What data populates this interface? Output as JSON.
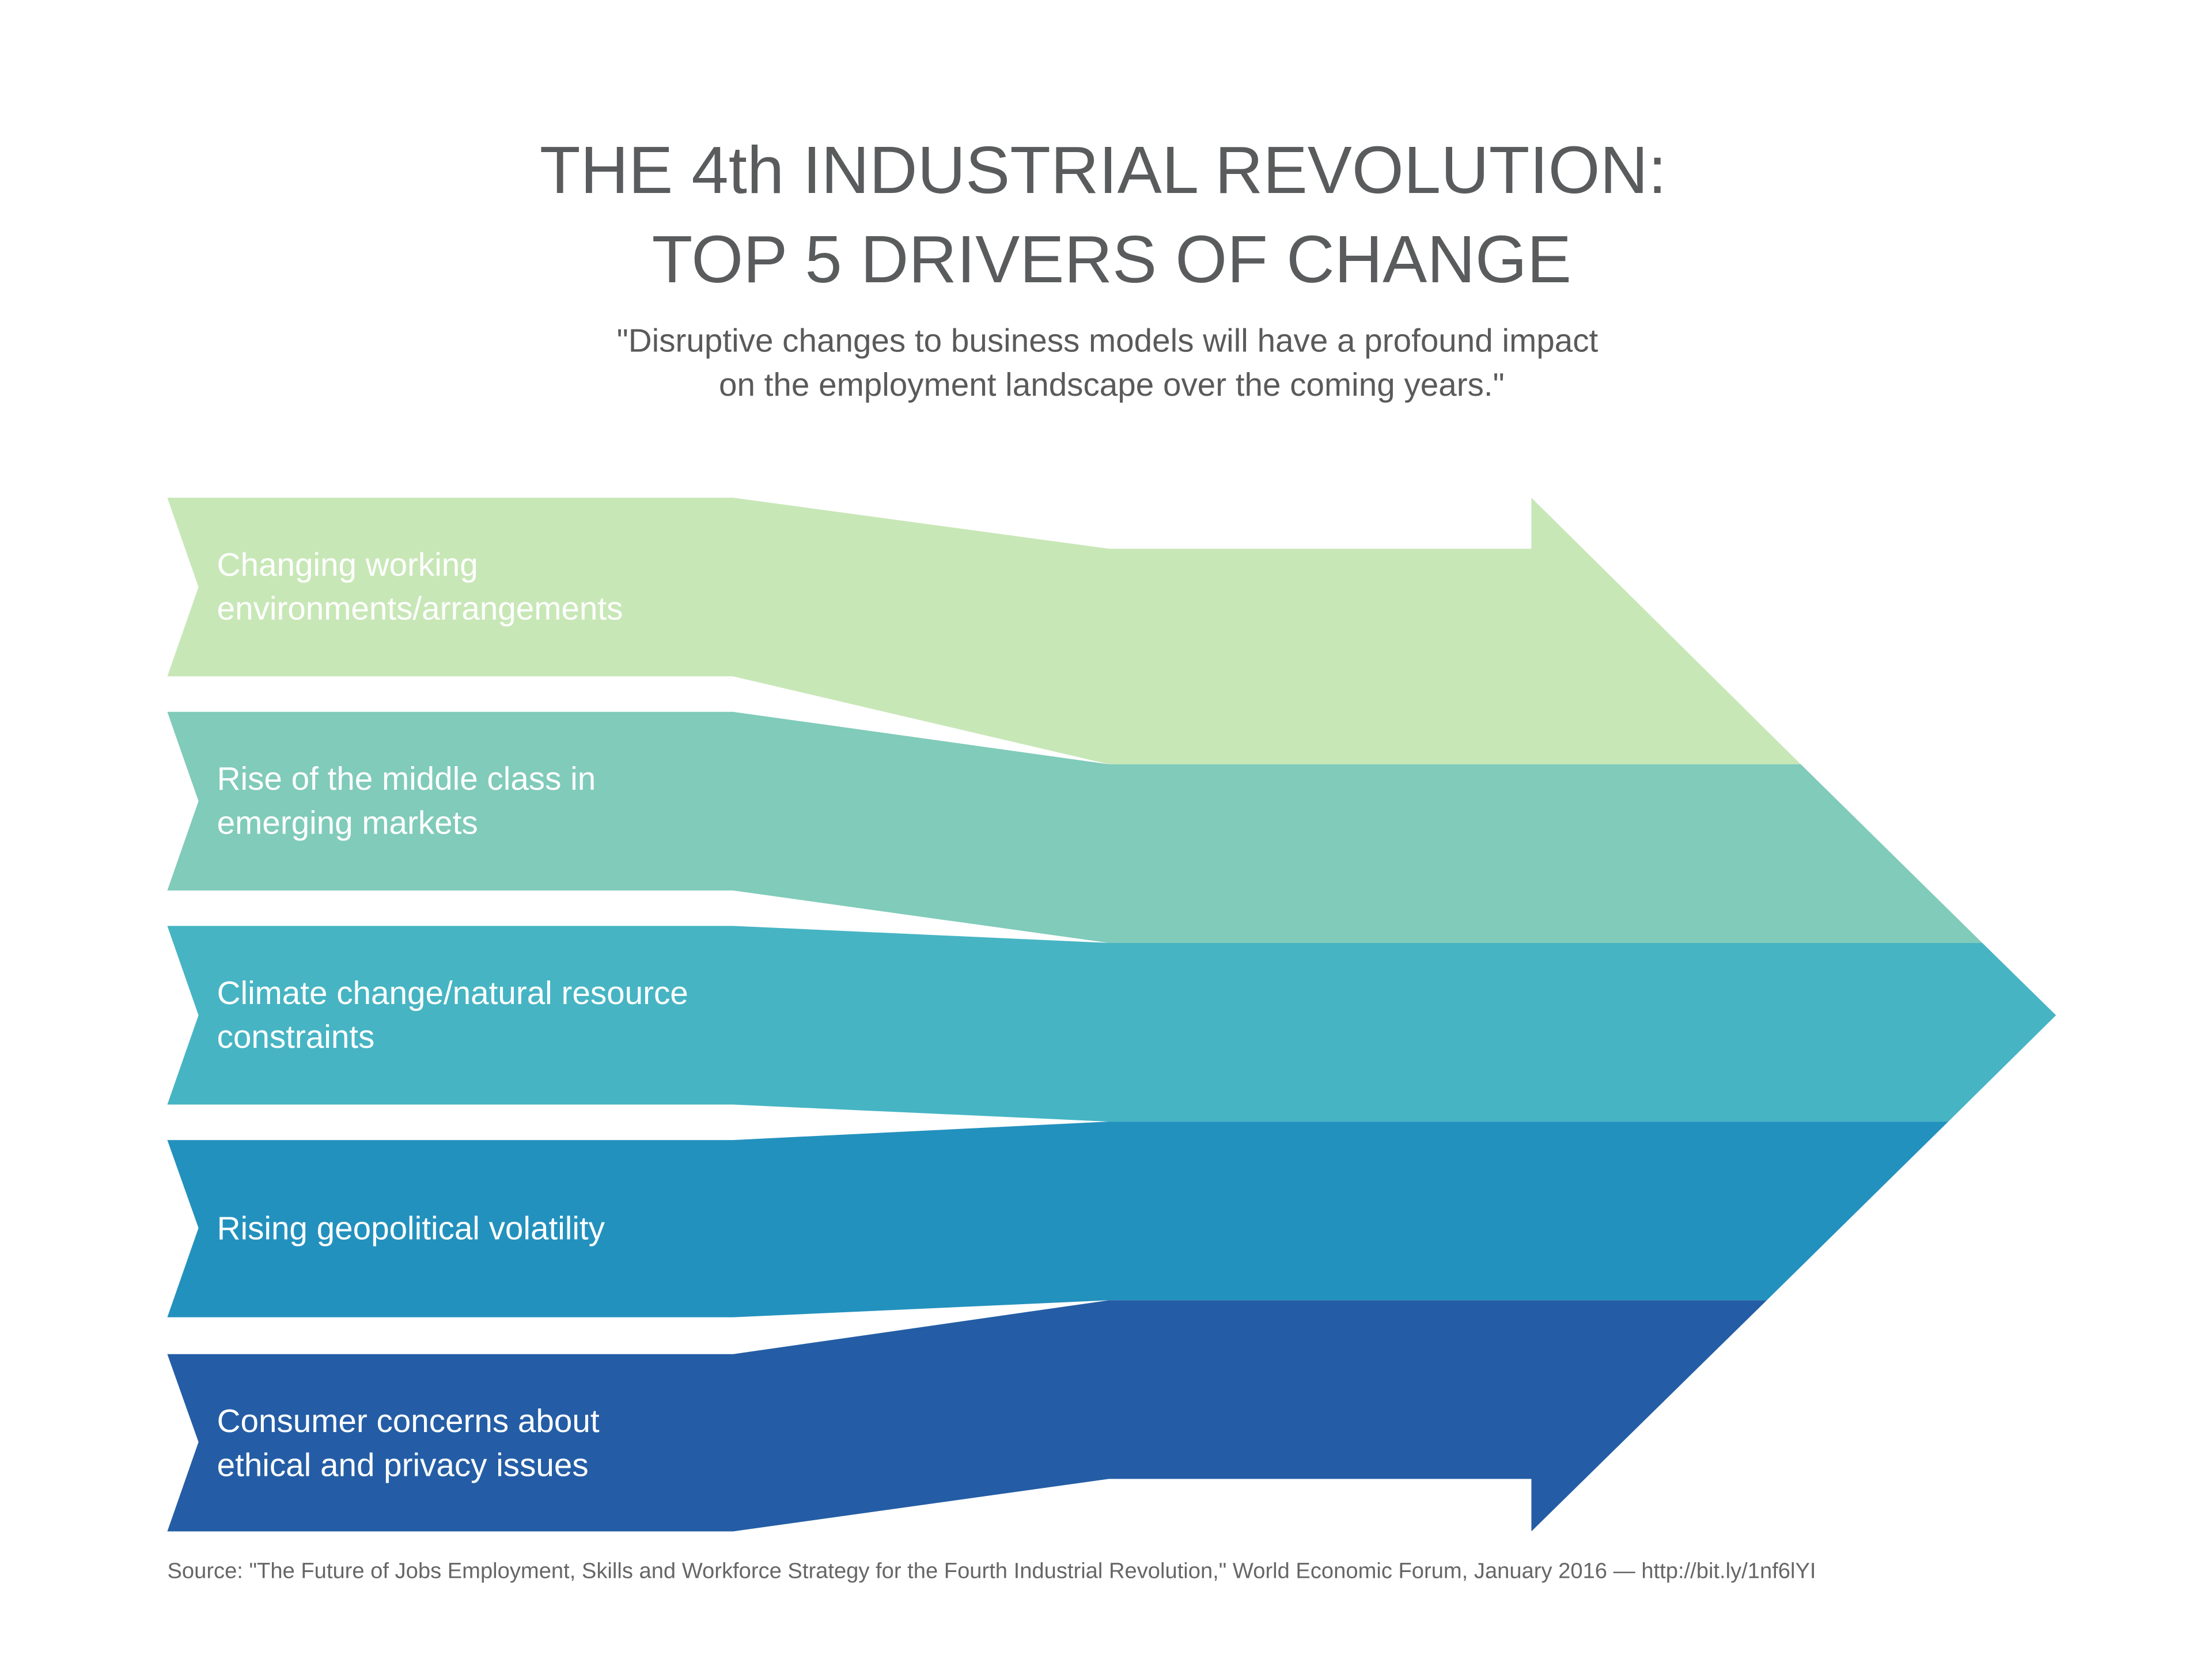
{
  "title": {
    "line1": "THE 4th INDUSTRIAL REVOLUTION:",
    "line2": "TOP 5 DRIVERS OF CHANGE"
  },
  "subtitle": {
    "line1": "\"Disruptive changes to business models will have a profound impact",
    "line2": "on the employment landscape over the coming years.\""
  },
  "drivers": [
    {
      "lines": [
        "Changing working",
        "environments/arrangements"
      ],
      "color": "#C8E7B7"
    },
    {
      "lines": [
        "Rise of the middle class in",
        "emerging markets"
      ],
      "color": "#80CBBA"
    },
    {
      "lines": [
        "Climate change/natural resource",
        "constraints"
      ],
      "color": "#46B4C3"
    },
    {
      "lines": [
        "Rising geopolitical volatility"
      ],
      "color": "#2391BE"
    },
    {
      "lines": [
        "Consumer concerns about",
        "ethical and privacy issues"
      ],
      "color": "#245DA5"
    }
  ],
  "source": "Source: \"The Future of Jobs Employment, Skills and Workforce Strategy for the Fourth Industrial Revolution,\" World Economic Forum, January 2016 — http://bit.ly/1nf6lYI"
}
